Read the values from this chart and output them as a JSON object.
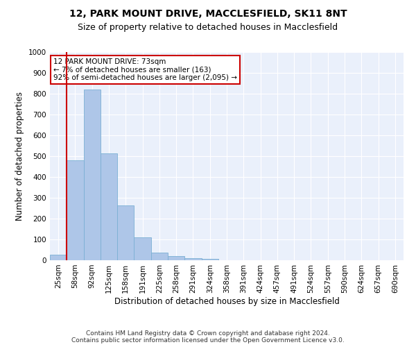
{
  "title1": "12, PARK MOUNT DRIVE, MACCLESFIELD, SK11 8NT",
  "title2": "Size of property relative to detached houses in Macclesfield",
  "xlabel": "Distribution of detached houses by size in Macclesfield",
  "ylabel": "Number of detached properties",
  "categories": [
    "25sqm",
    "58sqm",
    "92sqm",
    "125sqm",
    "158sqm",
    "191sqm",
    "225sqm",
    "258sqm",
    "291sqm",
    "324sqm",
    "358sqm",
    "391sqm",
    "424sqm",
    "457sqm",
    "491sqm",
    "524sqm",
    "557sqm",
    "590sqm",
    "624sqm",
    "657sqm",
    "690sqm"
  ],
  "values": [
    28,
    480,
    820,
    515,
    265,
    110,
    38,
    20,
    10,
    7,
    0,
    0,
    0,
    0,
    0,
    0,
    0,
    0,
    0,
    0,
    0
  ],
  "bar_color": "#aec6e8",
  "bar_edge_color": "#7aafd4",
  "annotation_text": "12 PARK MOUNT DRIVE: 73sqm\n← 7% of detached houses are smaller (163)\n92% of semi-detached houses are larger (2,095) →",
  "annotation_box_color": "#ffffff",
  "annotation_box_edge_color": "#cc0000",
  "vline_color": "#cc0000",
  "ylim": [
    0,
    1000
  ],
  "yticks": [
    0,
    100,
    200,
    300,
    400,
    500,
    600,
    700,
    800,
    900,
    1000
  ],
  "background_color": "#eaf0fb",
  "footnote": "Contains HM Land Registry data © Crown copyright and database right 2024.\nContains public sector information licensed under the Open Government Licence v3.0.",
  "title_fontsize": 10,
  "subtitle_fontsize": 9,
  "axis_label_fontsize": 8.5,
  "tick_fontsize": 7.5,
  "footnote_fontsize": 6.5
}
